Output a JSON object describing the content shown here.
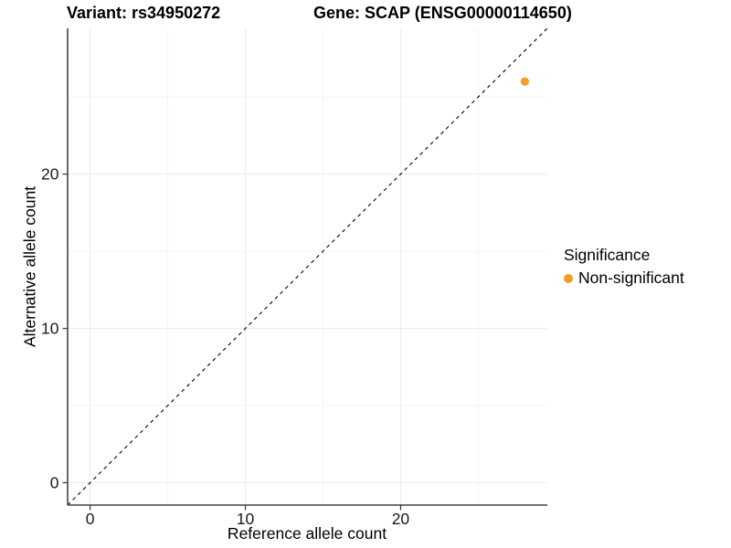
{
  "header": {
    "variant_title": "Variant: rs34950272",
    "gene_title": "Gene: SCAP (ENSG00000114650)"
  },
  "axes": {
    "x": {
      "label": "Reference allele count",
      "tick_labels": [
        "0",
        "10",
        "20"
      ]
    },
    "y": {
      "label": "Alternative allele count",
      "tick_labels": [
        "0",
        "10",
        "20"
      ]
    }
  },
  "legend": {
    "title": "Significance",
    "items": [
      {
        "label": "Non-significant",
        "color": "#F89B28"
      }
    ]
  },
  "colors": {
    "background": "#FFFFFF",
    "point": "#F89B28",
    "axis_line": "#444444",
    "tick": "#333333",
    "grid_major": "#ECECEC",
    "grid_minor": "#F5F5F5",
    "reference_line": "#000000",
    "text": "#000000",
    "tick_label": "#1A1A1A"
  },
  "chart_data": {
    "type": "scatter",
    "title": "Variant: rs34950272 | Gene: SCAP (ENSG00000114650)",
    "xlabel": "Reference allele count",
    "ylabel": "Alternative allele count",
    "xlim": [
      -1.45,
      29.45
    ],
    "ylim": [
      -1.45,
      29.45
    ],
    "x_ticks": [
      0,
      10,
      20
    ],
    "y_ticks": [
      0,
      10,
      20
    ],
    "x_minor_ticks": [
      5,
      15,
      25
    ],
    "y_minor_ticks": [
      5,
      15,
      25
    ],
    "grid": "major and minor, very light gray, white background",
    "legend_position": "right",
    "series": [
      {
        "name": "Non-significant",
        "color": "#F89B28",
        "points": [
          {
            "x": 28,
            "y": 26
          }
        ]
      }
    ],
    "reference_line": {
      "type": "identity",
      "slope": 1,
      "intercept": 0,
      "linestyle": "dashed",
      "color": "#000000"
    }
  }
}
